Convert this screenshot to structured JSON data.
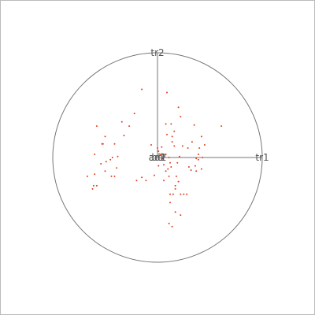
{
  "chart_data": {
    "type": "scatter",
    "title": "",
    "xlabel": "",
    "ylabel": "",
    "xlim": [
      -1,
      1
    ],
    "ylim": [
      -1,
      1
    ],
    "grid": false,
    "unit_circle": true,
    "axis_labels": {
      "x_axis": "tr1",
      "y_axis": "tr2"
    },
    "center_labels": [
      "bd",
      "ad2",
      "ad1"
    ],
    "colors": {
      "points": "#e0401a",
      "circle": "#777777",
      "axes": "#777777",
      "text": "#555555"
    },
    "points": [
      [
        -0.5,
        0.2
      ],
      [
        -0.58,
        0.3
      ],
      [
        -0.52,
        0.13
      ],
      [
        -0.41,
        0.13
      ],
      [
        -0.53,
        0.13
      ],
      [
        -0.6,
        0.03
      ],
      [
        -0.45,
        -0.02
      ],
      [
        -0.38,
        0.01
      ],
      [
        -0.43,
        0.0
      ],
      [
        -0.49,
        -0.04
      ],
      [
        -0.54,
        -0.06
      ],
      [
        -0.67,
        -0.18
      ],
      [
        -0.6,
        -0.16
      ],
      [
        -0.62,
        -0.3
      ],
      [
        -0.61,
        -0.27
      ],
      [
        -0.58,
        -0.27
      ],
      [
        -0.44,
        -0.18
      ],
      [
        -0.41,
        -0.18
      ],
      [
        -0.5,
        -0.13
      ],
      [
        -0.39,
        -0.1
      ],
      [
        -0.2,
        -0.22
      ],
      [
        -0.15,
        -0.19
      ],
      [
        -0.15,
        0.65
      ],
      [
        -0.22,
        0.42
      ],
      [
        -0.34,
        0.34
      ],
      [
        -0.27,
        0.3
      ],
      [
        -0.32,
        0.21
      ],
      [
        -0.11,
        -0.22
      ],
      [
        -0.03,
        -0.17
      ],
      [
        0.09,
        0.62
      ],
      [
        0.2,
        0.48
      ],
      [
        0.13,
        0.32
      ],
      [
        0.16,
        0.25
      ],
      [
        0.08,
        0.32
      ],
      [
        0.14,
        0.2
      ],
      [
        0.22,
        0.39
      ],
      [
        0.35,
        0.31
      ],
      [
        0.42,
        0.2
      ],
      [
        0.39,
        0.03
      ],
      [
        0.37,
        -0.01
      ],
      [
        0.4,
        0.09
      ],
      [
        0.33,
        0.15
      ],
      [
        0.29,
        0.09
      ],
      [
        0.24,
        0.11
      ],
      [
        0.21,
        0.01
      ],
      [
        0.3,
        -0.09
      ],
      [
        0.32,
        -0.12
      ],
      [
        0.37,
        -0.13
      ],
      [
        0.39,
        -0.02
      ],
      [
        0.43,
        0.0
      ],
      [
        0.45,
        0.12
      ],
      [
        0.42,
        -0.11
      ],
      [
        0.36,
        -0.08
      ],
      [
        0.13,
        -0.09
      ],
      [
        0.18,
        -0.18
      ],
      [
        0.2,
        -0.23
      ],
      [
        0.17,
        -0.3
      ],
      [
        0.12,
        -0.35
      ],
      [
        0.15,
        -0.35
      ],
      [
        0.12,
        -0.43
      ],
      [
        0.17,
        -0.52
      ],
      [
        0.22,
        -0.35
      ],
      [
        0.25,
        -0.35
      ],
      [
        0.28,
        -0.35
      ],
      [
        0.22,
        -0.55
      ],
      [
        0.11,
        -0.63
      ],
      [
        0.14,
        -0.66
      ],
      [
        0.17,
        -0.27
      ],
      [
        0.11,
        -0.18
      ],
      [
        0.1,
        -0.11
      ],
      [
        0.12,
        -0.05
      ],
      [
        0.19,
        -0.05
      ],
      [
        0.11,
        0.0
      ],
      [
        0.16,
        0.11
      ],
      [
        0.14,
        0.15
      ],
      [
        0.09,
        0.22
      ],
      [
        0.0,
        0.09
      ],
      [
        -0.06,
        0.12
      ],
      [
        0.01,
        0.06
      ],
      [
        0.04,
        -0.01
      ],
      [
        0.01,
        -0.08
      ],
      [
        0.06,
        -0.07
      ],
      [
        0.08,
        -0.13
      ],
      [
        0.06,
        -0.22
      ],
      [
        0.03,
        0.03
      ],
      [
        0.08,
        0.03
      ],
      [
        0.04,
        0.1
      ],
      [
        0.61,
        0.3
      ]
    ]
  }
}
